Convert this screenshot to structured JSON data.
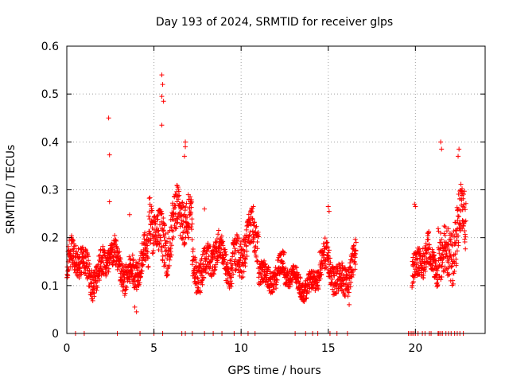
{
  "chart_data": {
    "type": "scatter",
    "title": "Day 193 of 2024, SRMTID for receiver glps",
    "xlabel": "GPS time / hours",
    "ylabel": "SRMTID / TECUs",
    "xlim": [
      0,
      24
    ],
    "ylim": [
      0,
      0.6
    ],
    "xticks": [
      "0",
      "5",
      "10",
      "15",
      "20"
    ],
    "xtick_values": [
      0,
      5,
      10,
      15,
      20
    ],
    "yticks": [
      "0",
      "0.1",
      "0.2",
      "0.3",
      "0.4",
      "0.5",
      "0.6"
    ],
    "ytick_values": [
      0,
      0.1,
      0.2,
      0.3,
      0.4,
      0.5,
      0.6
    ],
    "grid": true,
    "marker": "+",
    "color": "#ff0000",
    "series": [
      {
        "name": "SRMTID",
        "segments": [
          {
            "x_start": 0.0,
            "x_end": 4.7,
            "baseline": 0.14,
            "spread": 0.04
          },
          {
            "x_start": 4.7,
            "x_end": 7.2,
            "baseline": 0.22,
            "spread": 0.06
          },
          {
            "x_start": 7.2,
            "x_end": 9.5,
            "baseline": 0.15,
            "spread": 0.04
          },
          {
            "x_start": 9.5,
            "x_end": 11.0,
            "baseline": 0.18,
            "spread": 0.05
          },
          {
            "x_start": 11.0,
            "x_end": 12.5,
            "baseline": 0.13,
            "spread": 0.03
          },
          {
            "x_start": 12.5,
            "x_end": 14.5,
            "baseline": 0.11,
            "spread": 0.025
          },
          {
            "x_start": 14.5,
            "x_end": 16.6,
            "baseline": 0.13,
            "spread": 0.04
          },
          {
            "x_start": 19.8,
            "x_end": 20.8,
            "baseline": 0.15,
            "spread": 0.04
          },
          {
            "x_start": 20.8,
            "x_end": 21.3,
            "baseline": 0.13,
            "spread": 0.03
          },
          {
            "x_start": 21.3,
            "x_end": 22.9,
            "baseline": 0.2,
            "spread": 0.07
          }
        ],
        "highlights": [
          {
            "x": 2.4,
            "y": 0.45
          },
          {
            "x": 2.45,
            "y": 0.373
          },
          {
            "x": 2.45,
            "y": 0.275
          },
          {
            "x": 5.45,
            "y": 0.54
          },
          {
            "x": 5.5,
            "y": 0.52
          },
          {
            "x": 5.45,
            "y": 0.495
          },
          {
            "x": 5.55,
            "y": 0.485
          },
          {
            "x": 5.45,
            "y": 0.435
          },
          {
            "x": 6.8,
            "y": 0.4
          },
          {
            "x": 6.8,
            "y": 0.39
          },
          {
            "x": 6.75,
            "y": 0.37
          },
          {
            "x": 21.45,
            "y": 0.4
          },
          {
            "x": 21.5,
            "y": 0.385
          },
          {
            "x": 22.5,
            "y": 0.385
          },
          {
            "x": 22.45,
            "y": 0.37
          },
          {
            "x": 15.0,
            "y": 0.265
          },
          {
            "x": 15.05,
            "y": 0.255
          },
          {
            "x": 19.95,
            "y": 0.27
          },
          {
            "x": 20.0,
            "y": 0.265
          },
          {
            "x": 10.7,
            "y": 0.265
          },
          {
            "x": 7.9,
            "y": 0.26
          },
          {
            "x": 3.6,
            "y": 0.248
          },
          {
            "x": 4.0,
            "y": 0.045
          },
          {
            "x": 3.9,
            "y": 0.055
          },
          {
            "x": 16.2,
            "y": 0.06
          }
        ],
        "zero_points": [
          0.5,
          1.0,
          2.9,
          4.2,
          5.0,
          5.5,
          6.6,
          6.8,
          7.2,
          7.9,
          8.4,
          8.9,
          9.6,
          10.0,
          10.4,
          10.8,
          13.1,
          13.7,
          14.1,
          14.4,
          15.1,
          15.5,
          16.1,
          19.6,
          19.7,
          19.8,
          19.9,
          20.0,
          20.15,
          20.4,
          20.55,
          20.8,
          20.9,
          21.3,
          21.35,
          21.45,
          21.55,
          21.75,
          21.9,
          22.05,
          22.25,
          22.4,
          22.55,
          22.75
        ]
      }
    ]
  }
}
